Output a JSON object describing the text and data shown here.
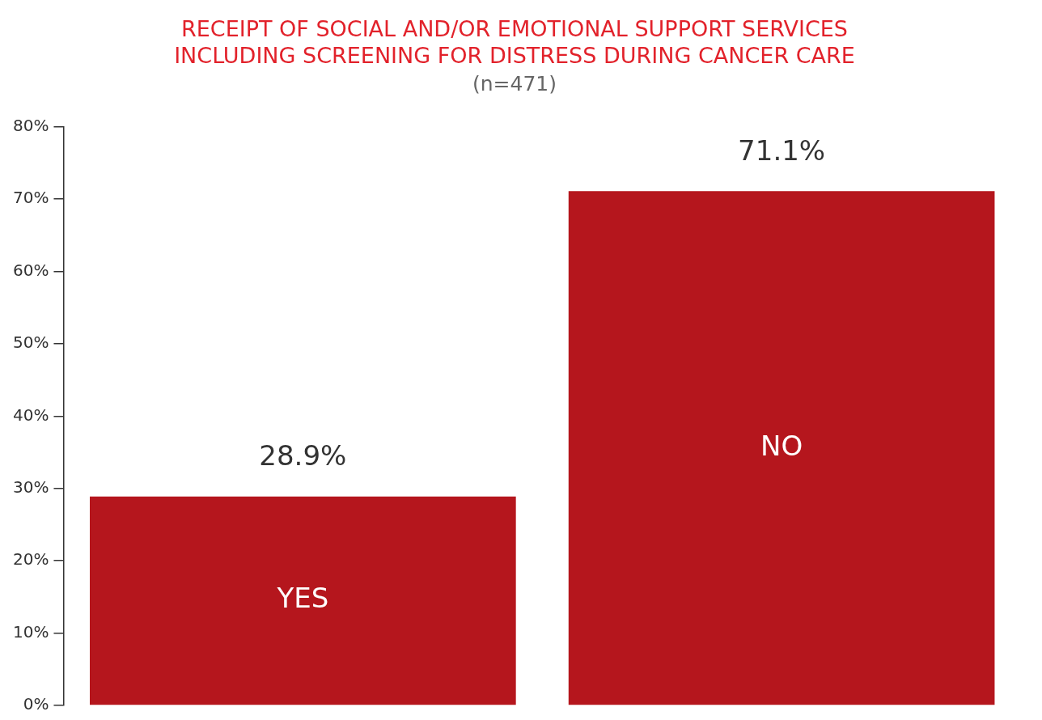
{
  "chart_data": {
    "type": "bar",
    "title": "RECEIPT OF SOCIAL AND/OR EMOTIONAL SUPPORT SERVICES\nINCLUDING SCREENING FOR DISTRESS DURING CANCER CARE",
    "subtitle": "(n=471)",
    "categories": [
      "YES",
      "NO"
    ],
    "values": [
      28.9,
      71.1
    ],
    "color": "#b5161d",
    "value_labels": [
      "28.9%",
      "71.1%"
    ],
    "ylim": [
      0,
      80
    ],
    "yticks": [
      {
        "value": 0,
        "label": "0%"
      },
      {
        "value": 10,
        "label": "10%"
      },
      {
        "value": 20,
        "label": "20%"
      },
      {
        "value": 30,
        "label": "30%"
      },
      {
        "value": 40,
        "label": "40%"
      },
      {
        "value": 50,
        "label": "50%"
      },
      {
        "value": 60,
        "label": "60%"
      },
      {
        "value": 70,
        "label": "70%"
      },
      {
        "value": 80,
        "label": "80%"
      }
    ],
    "grid": false,
    "legend": false
  }
}
